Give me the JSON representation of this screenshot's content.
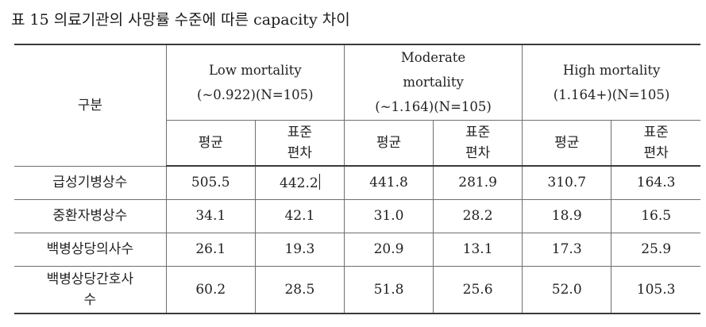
{
  "caption": "표 15 의료기관의 사망률 수준에 따른 capacity 차이",
  "table": {
    "row_header_label": "구분",
    "groups": [
      {
        "lines": [
          "Low mortality",
          "(~0.922)(N=105)"
        ]
      },
      {
        "lines": [
          "Moderate",
          "mortality",
          "(~1.164)(N=105)"
        ]
      },
      {
        "lines": [
          "High mortality",
          "(1.164+)(N=105)"
        ]
      }
    ],
    "stat_headers": {
      "mean": "평균",
      "sd_line1": "표준",
      "sd_line2": "편차"
    },
    "rows": [
      {
        "label_lines": [
          "급성기병상수"
        ],
        "values": [
          "505.5",
          "442.2",
          "441.8",
          "281.9",
          "310.7",
          "164.3"
        ]
      },
      {
        "label_lines": [
          "중환자병상수"
        ],
        "values": [
          "34.1",
          "42.1",
          "31.0",
          "28.2",
          "18.9",
          "16.5"
        ]
      },
      {
        "label_lines": [
          "백병상당의사수"
        ],
        "values": [
          "26.1",
          "19.3",
          "20.9",
          "13.1",
          "17.3",
          "25.9"
        ]
      },
      {
        "label_lines": [
          "백병상당간호사",
          "수"
        ],
        "values": [
          "60.2",
          "28.5",
          "51.8",
          "25.6",
          "52.0",
          "105.3"
        ]
      }
    ]
  }
}
